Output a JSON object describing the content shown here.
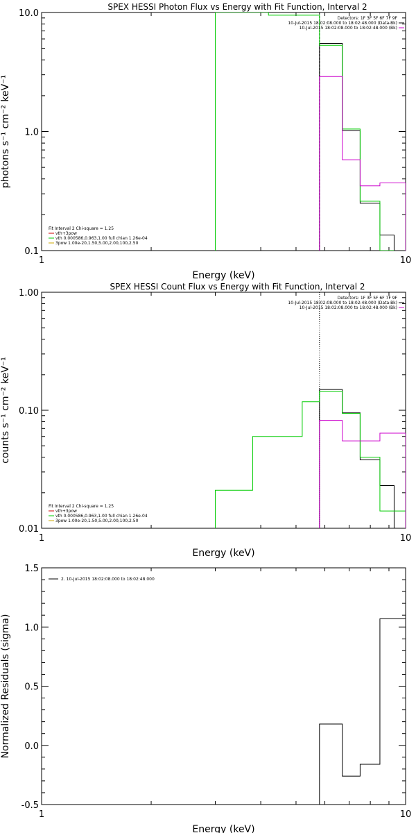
{
  "chart_data": [
    {
      "type": "line",
      "title": "SPEX HESSI Photon Flux vs Energy with Fit Function, Interval 2",
      "xlabel": "Energy (keV)",
      "ylabel": "photons s⁻¹ cm⁻² keV⁻¹",
      "xscale": "log",
      "yscale": "log",
      "xlim": [
        1,
        10
      ],
      "ylim": [
        0.1,
        10.0
      ],
      "xticks": [
        "1",
        "10"
      ],
      "yticks": [
        "0.1",
        "1.0",
        "10.0"
      ],
      "legend_top_right": {
        "header": "Detectors: 1F 3F 5F 6F 7F 9F",
        "lines": [
          {
            "text": "10-Jul-2015 18:02:08.000 to 18:02:48.000 (Data-Bk)",
            "color": "#000000"
          },
          {
            "text": "10-Jul-2015 18:02:08.000 to 18:02:48.000 (Bk)",
            "color": "#cc00cc"
          }
        ]
      },
      "legend_bottom_left": [
        {
          "text": "Fit Interval 2   Chi-square = 1.25",
          "color": ""
        },
        {
          "text": "vth+3pow",
          "color": "#cc0000"
        },
        {
          "text": "vth 0.000586,0.963,1.00  full chian 1.26e-04",
          "color": "#00cc00"
        },
        {
          "text": "3pow 1.00e-20,1.50,5.00,2.00,100,2.50",
          "color": "#ccaa00"
        }
      ],
      "vline": {
        "x": 5.8,
        "style": "dashed"
      },
      "series": [
        {
          "name": "",
          "color": "#000000",
          "edges": [
            5.8,
            6.7,
            7.5,
            8.5,
            9.3,
            10.0
          ],
          "values": [
            5.5,
            1.02,
            0.25,
            0.135,
            null
          ]
        },
        {
          "name": "",
          "color": "#00cc00",
          "edges": [
            3.0,
            4.2,
            5.8,
            6.7,
            7.5,
            8.5,
            9.3
          ],
          "values": [
            10.0,
            9.5,
            5.3,
            1.05,
            0.26,
            0.1
          ]
        },
        {
          "name": "",
          "color": "#cc00cc",
          "edges": [
            5.8,
            6.7,
            7.5,
            8.5,
            9.3,
            10.0
          ],
          "values": [
            2.9,
            0.58,
            0.35,
            0.37,
            0.37
          ]
        }
      ]
    },
    {
      "type": "line",
      "title": "SPEX HESSI Count Flux vs Energy with Fit Function, Interval 2",
      "xlabel": "Energy (keV)",
      "ylabel": "counts s⁻¹ cm⁻² keV⁻¹",
      "xscale": "log",
      "yscale": "log",
      "xlim": [
        1,
        10
      ],
      "ylim": [
        0.01,
        1.0
      ],
      "xticks": [
        "1",
        "10"
      ],
      "yticks": [
        "0.01",
        "0.10",
        "1.00"
      ],
      "legend_top_right": {
        "header": "Detectors: 1F 3F 5F 6F 7F 9F",
        "lines": [
          {
            "text": "10-Jul-2015 18:02:08.000 to 18:02:48.000 (Data-Bk)",
            "color": "#000000"
          },
          {
            "text": "10-Jul-2015 18:02:08.000 to 18:02:48.000 (Bk)",
            "color": "#cc00cc"
          }
        ]
      },
      "legend_bottom_left": [
        {
          "text": "Fit Interval 2   Chi-square = 1.25",
          "color": ""
        },
        {
          "text": "vth+3pow",
          "color": "#cc0000"
        },
        {
          "text": "vth 0.000586,0.963,1.00  full chian 1.26e-04",
          "color": "#00cc00"
        },
        {
          "text": "3pow 1.00e-20,1.50,5.00,2.00,100,2.50",
          "color": "#ccaa00"
        }
      ],
      "vline": {
        "x": 5.8,
        "style": "dotted"
      },
      "series": [
        {
          "name": "",
          "color": "#000000",
          "edges": [
            5.8,
            6.7,
            7.5,
            8.5,
            9.3,
            10.0
          ],
          "values": [
            0.15,
            0.095,
            0.038,
            0.023,
            null
          ]
        },
        {
          "name": "",
          "color": "#00cc00",
          "edges": [
            3.0,
            3.8,
            4.6,
            5.2,
            5.8,
            6.7,
            7.5,
            8.5,
            9.3,
            10.0
          ],
          "values": [
            0.021,
            0.06,
            0.06,
            0.118,
            0.145,
            0.094,
            0.04,
            0.014,
            0.014
          ]
        },
        {
          "name": "",
          "color": "#cc00cc",
          "edges": [
            5.8,
            6.7,
            7.5,
            8.5,
            9.3,
            10.0
          ],
          "values": [
            0.082,
            0.055,
            0.055,
            0.064,
            0.064
          ]
        }
      ]
    },
    {
      "type": "line",
      "title": "",
      "xlabel": "Energy (keV)",
      "ylabel": "Normalized Residuals (sigma)",
      "xscale": "log",
      "yscale": "linear",
      "xlim": [
        1,
        10
      ],
      "ylim": [
        -0.5,
        1.5
      ],
      "xticks": [
        "1",
        "10"
      ],
      "yticks": [
        "-0.5",
        "0.0",
        "0.5",
        "1.0",
        "1.5"
      ],
      "legend_top_left": {
        "text": "2. 10-Jul-2015 18:02:08.000 to 18:02:48.000",
        "color": "#000000"
      },
      "series": [
        {
          "name": "",
          "color": "#000000",
          "edges": [
            5.8,
            6.7,
            7.5,
            8.5,
            9.3,
            10.0
          ],
          "values": [
            0.18,
            -0.26,
            -0.16,
            1.07,
            1.07
          ]
        }
      ]
    }
  ]
}
